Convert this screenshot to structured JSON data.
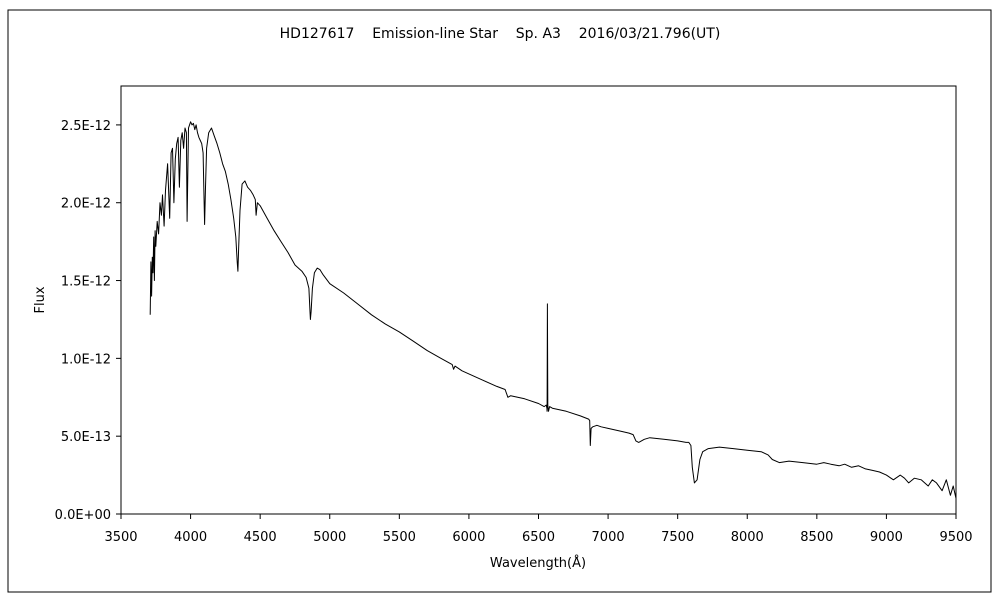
{
  "chart_data": {
    "type": "line",
    "title": "HD127617    Emission-line Star    Sp. A3    2016/03/21.796(UT)",
    "xlabel": "Wavelength(Å)",
    "ylabel": "Flux",
    "xlim": [
      3500,
      9500
    ],
    "ylim": [
      0,
      2.75e-12
    ],
    "xticks": [
      3500,
      4000,
      4500,
      5000,
      5500,
      6000,
      6500,
      7000,
      7500,
      8000,
      8500,
      9000,
      9500
    ],
    "xtick_labels": [
      "3500",
      "4000",
      "4500",
      "5000",
      "5500",
      "6000",
      "6500",
      "7000",
      "7500",
      "8000",
      "8500",
      "9000",
      "9500"
    ],
    "yticks": [
      0,
      5e-13,
      1e-12,
      1.5e-12,
      2e-12,
      2.5e-12
    ],
    "ytick_labels": [
      "0.0E+00",
      "5.0E-13",
      "1.0E-12",
      "1.5E-12",
      "2.0E-12",
      "2.5E-12"
    ],
    "grid": false,
    "legend": "none",
    "series": [
      {
        "color": "#000000",
        "x": [
          3710,
          3715,
          3720,
          3725,
          3730,
          3735,
          3740,
          3745,
          3750,
          3760,
          3770,
          3780,
          3790,
          3798,
          3810,
          3820,
          3835,
          3850,
          3860,
          3870,
          3880,
          3890,
          3900,
          3910,
          3920,
          3930,
          3940,
          3950,
          3960,
          3970,
          3975,
          3985,
          4000,
          4010,
          4020,
          4030,
          4040,
          4050,
          4060,
          4070,
          4080,
          4090,
          4095,
          4101,
          4107,
          4115,
          4130,
          4150,
          4170,
          4190,
          4210,
          4230,
          4250,
          4270,
          4290,
          4310,
          4325,
          4335,
          4340,
          4345,
          4355,
          4370,
          4390,
          4410,
          4430,
          4450,
          4465,
          4471,
          4480,
          4500,
          4550,
          4600,
          4650,
          4700,
          4750,
          4800,
          4830,
          4850,
          4858,
          4861,
          4866,
          4875,
          4890,
          4910,
          4930,
          4950,
          5000,
          5100,
          5200,
          5300,
          5400,
          5500,
          5600,
          5700,
          5800,
          5880,
          5890,
          5900,
          5950,
          6000,
          6100,
          6200,
          6260,
          6280,
          6300,
          6400,
          6500,
          6540,
          6555,
          6560,
          6562,
          6564,
          6567,
          6572,
          6580,
          6600,
          6700,
          6800,
          6860,
          6868,
          6872,
          6878,
          6890,
          6920,
          6950,
          7000,
          7100,
          7150,
          7180,
          7200,
          7220,
          7260,
          7300,
          7400,
          7500,
          7560,
          7580,
          7595,
          7605,
          7620,
          7640,
          7660,
          7680,
          7720,
          7800,
          7900,
          8000,
          8100,
          8150,
          8180,
          8230,
          8300,
          8400,
          8500,
          8550,
          8600,
          8660,
          8700,
          8750,
          8800,
          8850,
          8900,
          8950,
          9000,
          9050,
          9100,
          9130,
          9160,
          9200,
          9250,
          9300,
          9330,
          9360,
          9400,
          9430,
          9460,
          9480,
          9500
        ],
        "y": [
          1.28e-12,
          1.62e-12,
          1.4e-12,
          1.65e-12,
          1.55e-12,
          1.78e-12,
          1.5e-12,
          1.82e-12,
          1.72e-12,
          1.88e-12,
          1.8e-12,
          2e-12,
          1.92e-12,
          2.05e-12,
          1.85e-12,
          2.08e-12,
          2.25e-12,
          1.9e-12,
          2.32e-12,
          2.35e-12,
          2e-12,
          2.28e-12,
          2.38e-12,
          2.42e-12,
          2.1e-12,
          2.4e-12,
          2.45e-12,
          2.35e-12,
          2.48e-12,
          2.45e-12,
          1.88e-12,
          2.48e-12,
          2.52e-12,
          2.5e-12,
          2.51e-12,
          2.47e-12,
          2.5e-12,
          2.45e-12,
          2.42e-12,
          2.4e-12,
          2.38e-12,
          2.32e-12,
          2.1e-12,
          1.86e-12,
          2.1e-12,
          2.35e-12,
          2.45e-12,
          2.48e-12,
          2.43e-12,
          2.38e-12,
          2.32e-12,
          2.25e-12,
          2.2e-12,
          2.12e-12,
          2.02e-12,
          1.9e-12,
          1.78e-12,
          1.62e-12,
          1.56e-12,
          1.7e-12,
          1.95e-12,
          2.12e-12,
          2.14e-12,
          2.1e-12,
          2.08e-12,
          2.05e-12,
          2.02e-12,
          1.92e-12,
          2e-12,
          1.98e-12,
          1.9e-12,
          1.82e-12,
          1.75e-12,
          1.68e-12,
          1.6e-12,
          1.56e-12,
          1.52e-12,
          1.45e-12,
          1.3e-12,
          1.25e-12,
          1.3e-12,
          1.45e-12,
          1.55e-12,
          1.58e-12,
          1.57e-12,
          1.54e-12,
          1.48e-12,
          1.42e-12,
          1.35e-12,
          1.28e-12,
          1.22e-12,
          1.17e-12,
          1.11e-12,
          1.05e-12,
          1e-12,
          9.6e-13,
          9.3e-13,
          9.5e-13,
          9.2e-13,
          9e-13,
          8.6e-13,
          8.2e-13,
          8e-13,
          7.5e-13,
          7.6e-13,
          7.4e-13,
          7.1e-13,
          6.9e-13,
          7e-13,
          6.8e-13,
          6.6e-13,
          1.35e-12,
          7e-13,
          6.6e-13,
          6.9e-13,
          6.8e-13,
          6.6e-13,
          6.3e-13,
          6.1e-13,
          6e-13,
          4.4e-13,
          5.5e-13,
          5.6e-13,
          5.7e-13,
          5.6e-13,
          5.5e-13,
          5.3e-13,
          5.2e-13,
          5.1e-13,
          4.7e-13,
          4.6e-13,
          4.8e-13,
          4.9e-13,
          4.8e-13,
          4.7e-13,
          4.6e-13,
          4.6e-13,
          4.4e-13,
          3e-13,
          2e-13,
          2.2e-13,
          3.5e-13,
          4e-13,
          4.2e-13,
          4.3e-13,
          4.2e-13,
          4.1e-13,
          4e-13,
          3.8e-13,
          3.5e-13,
          3.3e-13,
          3.4e-13,
          3.3e-13,
          3.2e-13,
          3.3e-13,
          3.2e-13,
          3.1e-13,
          3.2e-13,
          3e-13,
          3.1e-13,
          2.9e-13,
          2.8e-13,
          2.7e-13,
          2.5e-13,
          2.2e-13,
          2.5e-13,
          2.3e-13,
          2e-13,
          2.3e-13,
          2.2e-13,
          1.8e-13,
          2.2e-13,
          2e-13,
          1.5e-13,
          2.2e-13,
          1.2e-13,
          1.8e-13,
          1e-13
        ]
      }
    ]
  }
}
